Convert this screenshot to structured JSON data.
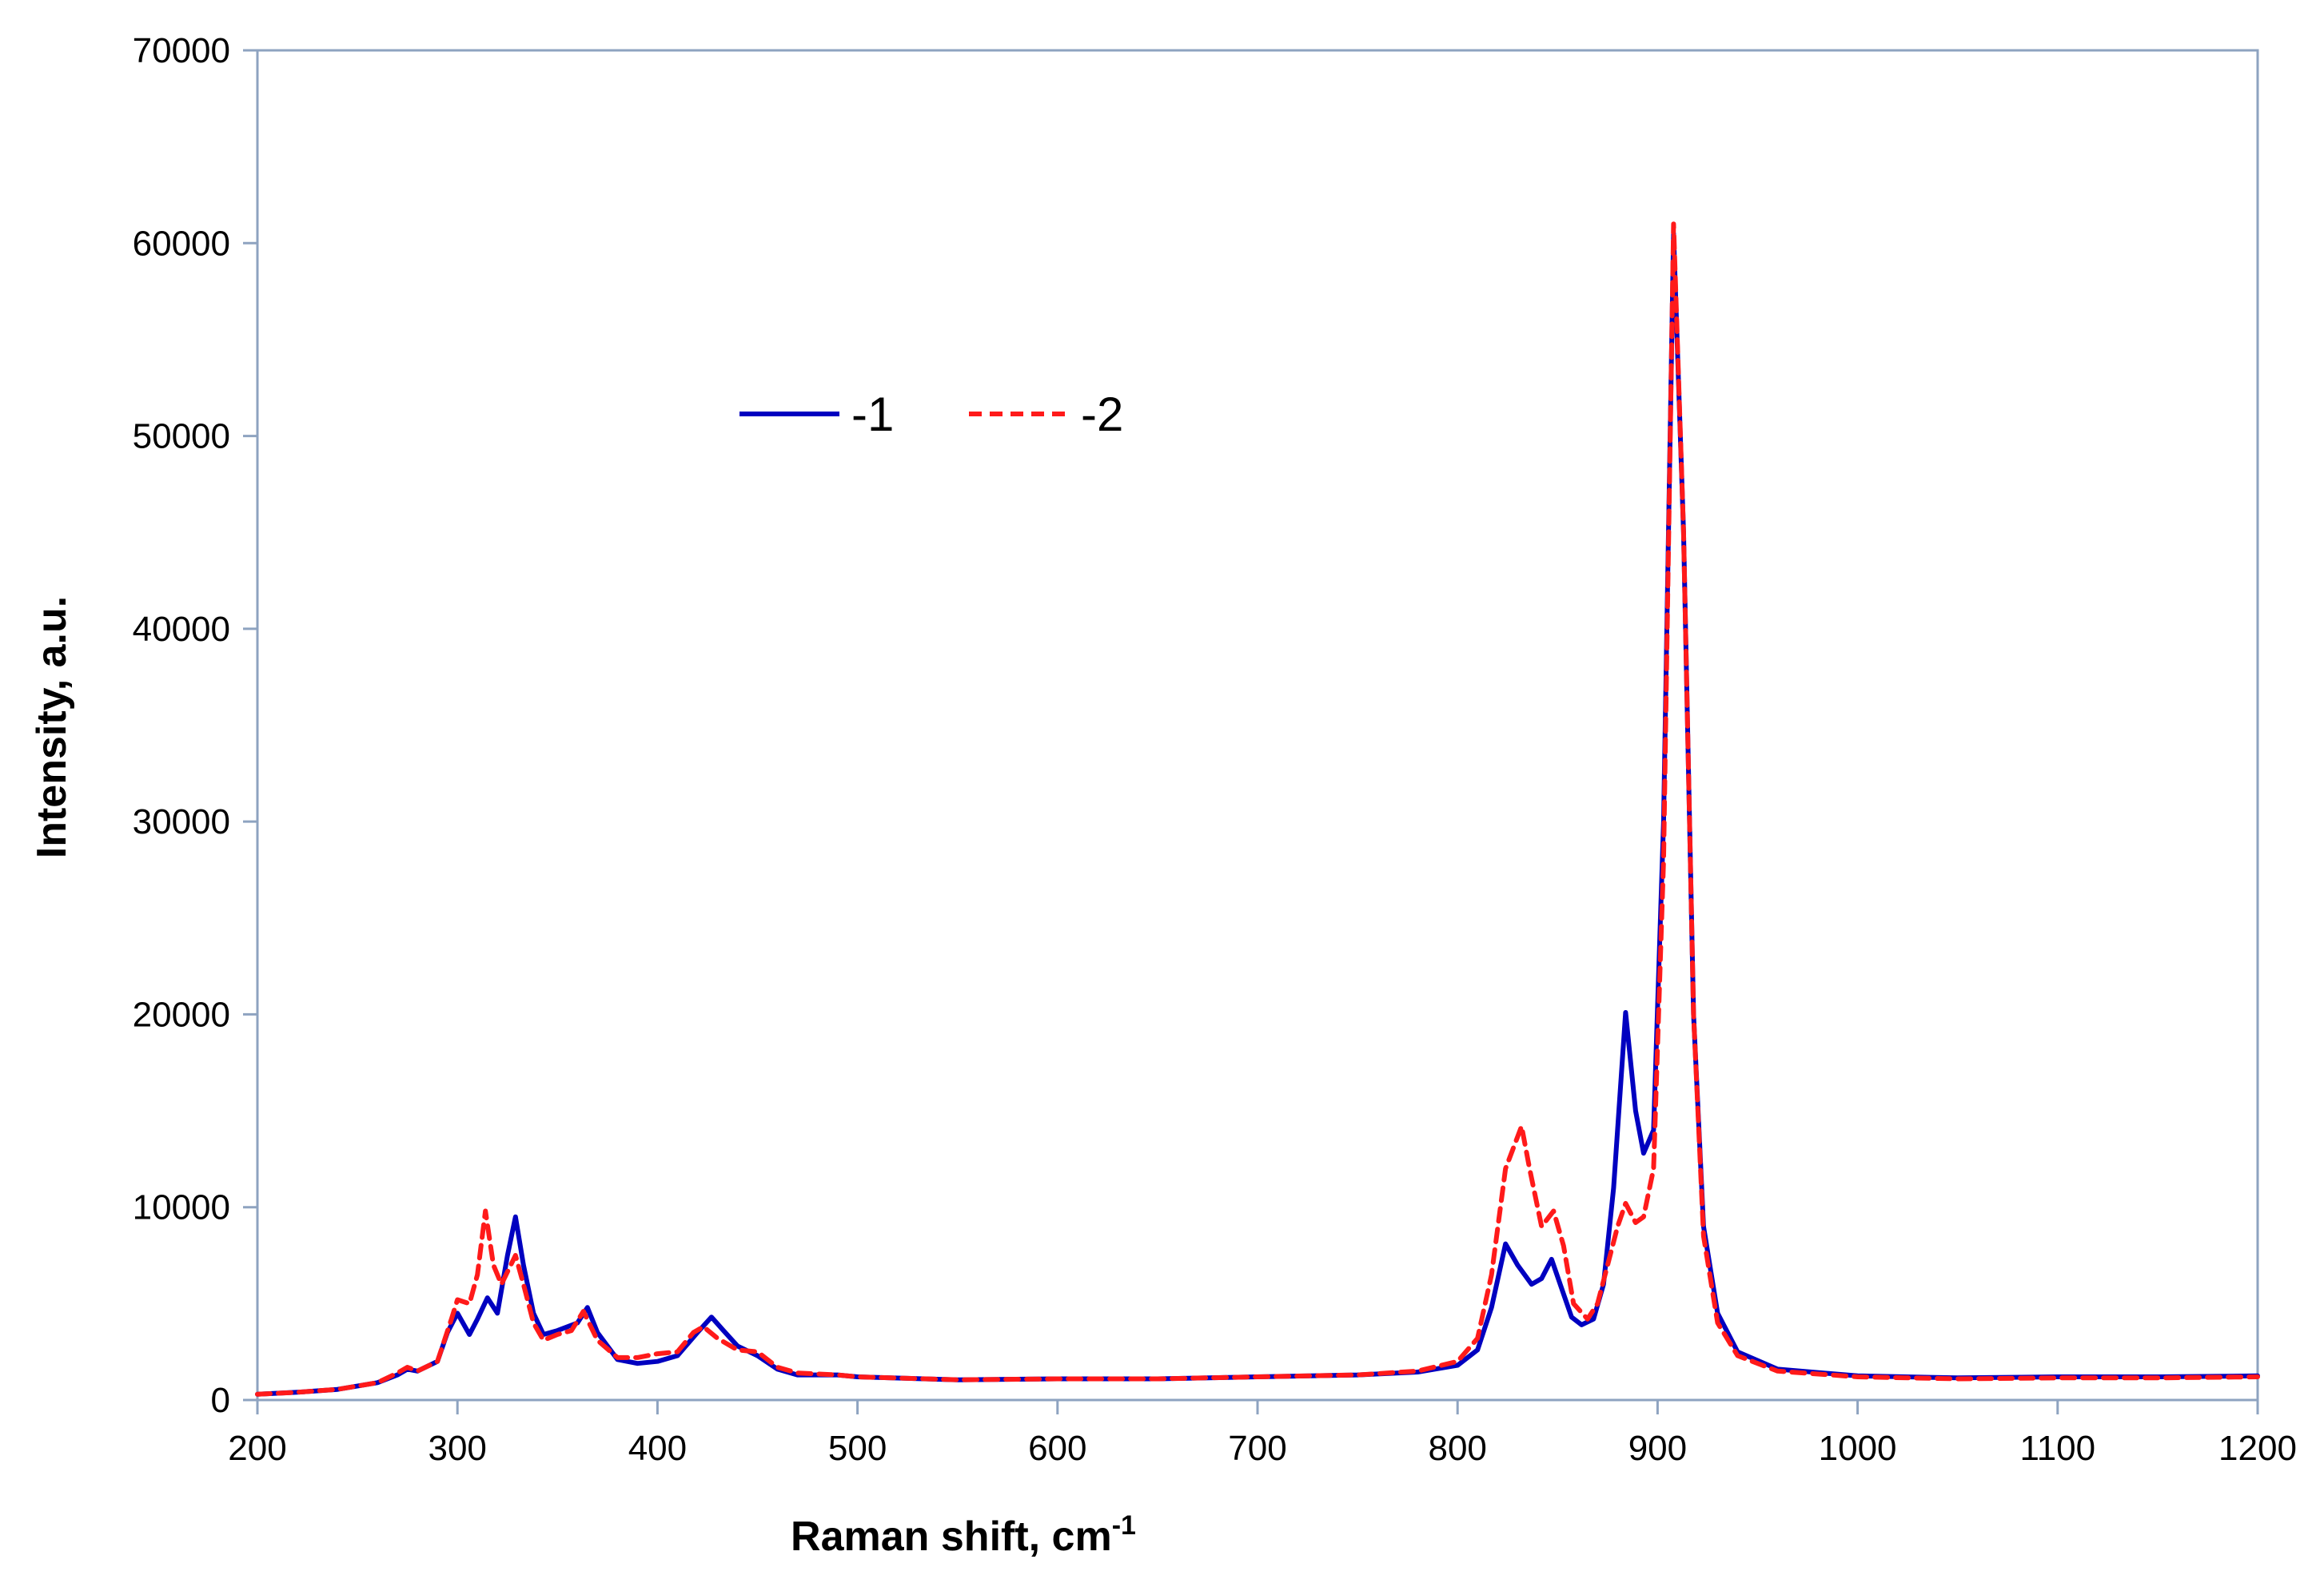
{
  "chart_data": {
    "type": "line",
    "xlabel": "Raman shift, cm",
    "xlabel_superscript": "-1",
    "ylabel": "Intensity, a.u.",
    "xlim": [
      200,
      1200
    ],
    "ylim": [
      0,
      70000
    ],
    "x_ticks": [
      "200",
      "300",
      "400",
      "500",
      "600",
      "700",
      "800",
      "900",
      "1000",
      "1100",
      "1200"
    ],
    "y_ticks": [
      "0",
      "10000",
      "20000",
      "30000",
      "40000",
      "50000",
      "60000",
      "70000"
    ],
    "grid": false,
    "legend_placement": "upper-left inside plot",
    "series": [
      {
        "name": "-1",
        "color": "#0000c0",
        "style": "solid",
        "points": [
          [
            200,
            300
          ],
          [
            220,
            400
          ],
          [
            240,
            550
          ],
          [
            260,
            900
          ],
          [
            270,
            1300
          ],
          [
            275,
            1600
          ],
          [
            280,
            1500
          ],
          [
            290,
            2000
          ],
          [
            295,
            3500
          ],
          [
            300,
            4500
          ],
          [
            306,
            3400
          ],
          [
            310,
            4200
          ],
          [
            315,
            5300
          ],
          [
            320,
            4500
          ],
          [
            325,
            7500
          ],
          [
            329,
            9500
          ],
          [
            333,
            7000
          ],
          [
            338,
            4500
          ],
          [
            343,
            3400
          ],
          [
            350,
            3600
          ],
          [
            355,
            3800
          ],
          [
            360,
            4000
          ],
          [
            365,
            4800
          ],
          [
            370,
            3500
          ],
          [
            380,
            2100
          ],
          [
            390,
            1900
          ],
          [
            400,
            2000
          ],
          [
            410,
            2300
          ],
          [
            420,
            3500
          ],
          [
            427,
            4300
          ],
          [
            433,
            3600
          ],
          [
            440,
            2800
          ],
          [
            450,
            2300
          ],
          [
            460,
            1600
          ],
          [
            470,
            1300
          ],
          [
            490,
            1300
          ],
          [
            500,
            1200
          ],
          [
            550,
            1050
          ],
          [
            600,
            1100
          ],
          [
            650,
            1100
          ],
          [
            700,
            1200
          ],
          [
            750,
            1300
          ],
          [
            780,
            1450
          ],
          [
            800,
            1800
          ],
          [
            810,
            2600
          ],
          [
            817,
            4800
          ],
          [
            824,
            8100
          ],
          [
            830,
            7000
          ],
          [
            837,
            6000
          ],
          [
            842,
            6300
          ],
          [
            847,
            7300
          ],
          [
            852,
            5800
          ],
          [
            857,
            4300
          ],
          [
            862,
            3900
          ],
          [
            868,
            4200
          ],
          [
            873,
            6000
          ],
          [
            878,
            11000
          ],
          [
            884,
            20100
          ],
          [
            889,
            15000
          ],
          [
            893,
            12800
          ],
          [
            898,
            14000
          ],
          [
            903,
            30000
          ],
          [
            908,
            60500
          ],
          [
            913,
            45000
          ],
          [
            918,
            20000
          ],
          [
            923,
            9000
          ],
          [
            930,
            4500
          ],
          [
            940,
            2500
          ],
          [
            960,
            1600
          ],
          [
            1000,
            1250
          ],
          [
            1050,
            1150
          ],
          [
            1100,
            1200
          ],
          [
            1150,
            1200
          ],
          [
            1200,
            1250
          ]
        ]
      },
      {
        "name": "-2",
        "color": "#ff1a1a",
        "style": "dashed",
        "points": [
          [
            200,
            300
          ],
          [
            220,
            400
          ],
          [
            240,
            550
          ],
          [
            260,
            900
          ],
          [
            270,
            1400
          ],
          [
            275,
            1700
          ],
          [
            280,
            1500
          ],
          [
            290,
            2000
          ],
          [
            297,
            4200
          ],
          [
            300,
            5200
          ],
          [
            306,
            5000
          ],
          [
            310,
            6500
          ],
          [
            314,
            9800
          ],
          [
            318,
            7000
          ],
          [
            322,
            6000
          ],
          [
            329,
            7500
          ],
          [
            333,
            6000
          ],
          [
            338,
            4000
          ],
          [
            343,
            3100
          ],
          [
            350,
            3400
          ],
          [
            357,
            3600
          ],
          [
            363,
            4600
          ],
          [
            370,
            3100
          ],
          [
            380,
            2200
          ],
          [
            390,
            2200
          ],
          [
            400,
            2400
          ],
          [
            410,
            2500
          ],
          [
            418,
            3500
          ],
          [
            423,
            3800
          ],
          [
            430,
            3200
          ],
          [
            440,
            2600
          ],
          [
            450,
            2500
          ],
          [
            460,
            1700
          ],
          [
            470,
            1400
          ],
          [
            490,
            1300
          ],
          [
            500,
            1200
          ],
          [
            550,
            1050
          ],
          [
            600,
            1100
          ],
          [
            650,
            1100
          ],
          [
            700,
            1200
          ],
          [
            750,
            1300
          ],
          [
            780,
            1500
          ],
          [
            800,
            2000
          ],
          [
            810,
            3200
          ],
          [
            817,
            6500
          ],
          [
            824,
            12000
          ],
          [
            832,
            14200
          ],
          [
            836,
            12000
          ],
          [
            842,
            9000
          ],
          [
            848,
            9800
          ],
          [
            853,
            8000
          ],
          [
            858,
            5000
          ],
          [
            865,
            4200
          ],
          [
            870,
            5000
          ],
          [
            875,
            7000
          ],
          [
            880,
            9000
          ],
          [
            884,
            10200
          ],
          [
            889,
            9200
          ],
          [
            893,
            9500
          ],
          [
            898,
            12000
          ],
          [
            903,
            28000
          ],
          [
            908,
            61000
          ],
          [
            913,
            45000
          ],
          [
            918,
            20000
          ],
          [
            923,
            8500
          ],
          [
            930,
            4000
          ],
          [
            940,
            2300
          ],
          [
            960,
            1500
          ],
          [
            1000,
            1200
          ],
          [
            1050,
            1100
          ],
          [
            1100,
            1150
          ],
          [
            1150,
            1150
          ],
          [
            1200,
            1200
          ]
        ]
      }
    ]
  }
}
